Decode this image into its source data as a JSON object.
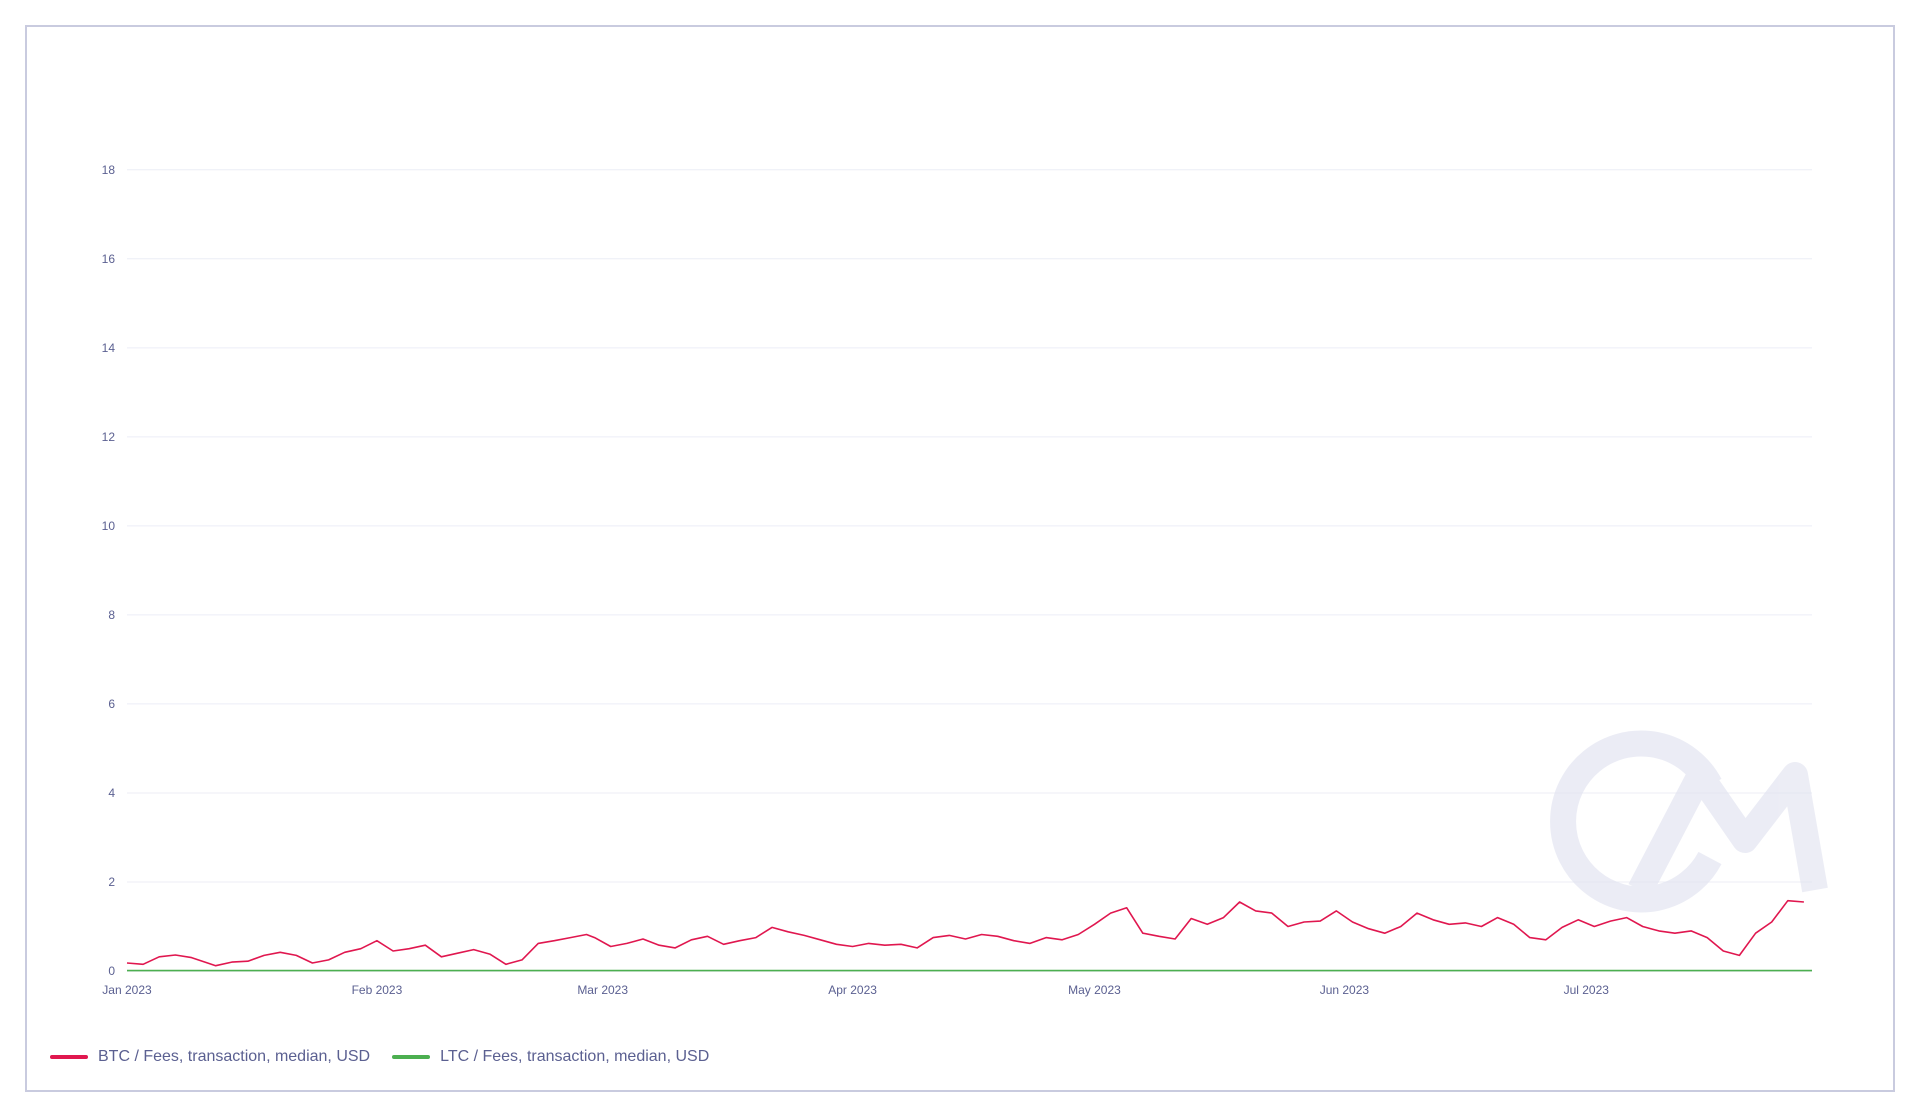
{
  "chart_data": {
    "type": "line",
    "xlim": [
      "2023-01-01",
      "2023-07-29"
    ],
    "ylim": [
      0,
      19.5
    ],
    "grid": true,
    "legend_position": "bottom-left",
    "y_ticks": [
      0,
      2,
      4,
      6,
      8,
      10,
      12,
      14,
      16,
      18
    ],
    "x_ticks": [
      {
        "date": "2023-01-01",
        "label": "Jan 2023"
      },
      {
        "date": "2023-02-01",
        "label": "Feb 2023"
      },
      {
        "date": "2023-03-01",
        "label": "Mar 2023"
      },
      {
        "date": "2023-04-01",
        "label": "Apr 2023"
      },
      {
        "date": "2023-05-01",
        "label": "May 2023"
      },
      {
        "date": "2023-06-01",
        "label": "Jun 2023"
      },
      {
        "date": "2023-07-01",
        "label": "Jul 2023"
      }
    ],
    "series": [
      {
        "name": "BTC / Fees, transaction, median, USD",
        "color": "#e0174f",
        "points": [
          [
            "2023-01-01",
            0.18
          ],
          [
            "2023-01-03",
            0.15
          ],
          [
            "2023-01-05",
            0.32
          ],
          [
            "2023-01-07",
            0.36
          ],
          [
            "2023-01-09",
            0.3
          ],
          [
            "2023-01-11",
            0.18
          ],
          [
            "2023-01-12",
            0.12
          ],
          [
            "2023-01-14",
            0.2
          ],
          [
            "2023-01-16",
            0.22
          ],
          [
            "2023-01-18",
            0.35
          ],
          [
            "2023-01-20",
            0.42
          ],
          [
            "2023-01-22",
            0.35
          ],
          [
            "2023-01-24",
            0.18
          ],
          [
            "2023-01-26",
            0.25
          ],
          [
            "2023-01-28",
            0.42
          ],
          [
            "2023-01-30",
            0.5
          ],
          [
            "2023-02-01",
            0.68
          ],
          [
            "2023-02-03",
            0.45
          ],
          [
            "2023-02-05",
            0.5
          ],
          [
            "2023-02-07",
            0.58
          ],
          [
            "2023-02-09",
            0.32
          ],
          [
            "2023-02-11",
            0.4
          ],
          [
            "2023-02-13",
            0.48
          ],
          [
            "2023-02-15",
            0.38
          ],
          [
            "2023-02-17",
            0.15
          ],
          [
            "2023-02-19",
            0.25
          ],
          [
            "2023-02-21",
            0.62
          ],
          [
            "2023-02-23",
            0.68
          ],
          [
            "2023-02-25",
            0.75
          ],
          [
            "2023-02-27",
            0.82
          ],
          [
            "2023-02-28",
            0.75
          ],
          [
            "2023-03-02",
            0.55
          ],
          [
            "2023-03-04",
            0.62
          ],
          [
            "2023-03-06",
            0.72
          ],
          [
            "2023-03-08",
            0.58
          ],
          [
            "2023-03-10",
            0.52
          ],
          [
            "2023-03-12",
            0.7
          ],
          [
            "2023-03-14",
            0.78
          ],
          [
            "2023-03-16",
            0.6
          ],
          [
            "2023-03-18",
            0.68
          ],
          [
            "2023-03-20",
            0.75
          ],
          [
            "2023-03-22",
            0.98
          ],
          [
            "2023-03-24",
            0.88
          ],
          [
            "2023-03-26",
            0.8
          ],
          [
            "2023-03-28",
            0.7
          ],
          [
            "2023-03-30",
            0.6
          ],
          [
            "2023-04-01",
            0.55
          ],
          [
            "2023-04-03",
            0.62
          ],
          [
            "2023-04-05",
            0.58
          ],
          [
            "2023-04-07",
            0.6
          ],
          [
            "2023-04-09",
            0.52
          ],
          [
            "2023-04-11",
            0.75
          ],
          [
            "2023-04-13",
            0.8
          ],
          [
            "2023-04-15",
            0.72
          ],
          [
            "2023-04-17",
            0.82
          ],
          [
            "2023-04-19",
            0.78
          ],
          [
            "2023-04-21",
            0.68
          ],
          [
            "2023-04-23",
            0.62
          ],
          [
            "2023-04-25",
            0.75
          ],
          [
            "2023-04-27",
            0.7
          ],
          [
            "2023-04-29",
            0.82
          ],
          [
            "2023-05-01",
            1.05
          ],
          [
            "2023-05-03",
            1.3
          ],
          [
            "2023-05-05",
            1.42
          ],
          [
            "2023-05-07",
            0.85
          ],
          [
            "2023-05-09",
            0.78
          ],
          [
            "2023-05-11",
            0.72
          ],
          [
            "2023-05-13",
            1.18
          ],
          [
            "2023-05-15",
            1.05
          ],
          [
            "2023-05-17",
            1.2
          ],
          [
            "2023-05-19",
            1.55
          ],
          [
            "2023-05-21",
            1.35
          ],
          [
            "2023-05-23",
            1.3
          ],
          [
            "2023-05-25",
            1.0
          ],
          [
            "2023-05-27",
            1.1
          ],
          [
            "2023-05-29",
            1.12
          ],
          [
            "2023-05-31",
            1.35
          ],
          [
            "2023-06-02",
            1.1
          ],
          [
            "2023-06-04",
            0.95
          ],
          [
            "2023-06-06",
            0.85
          ],
          [
            "2023-06-08",
            1.0
          ],
          [
            "2023-06-10",
            1.3
          ],
          [
            "2023-06-12",
            1.15
          ],
          [
            "2023-06-14",
            1.05
          ],
          [
            "2023-06-16",
            1.08
          ],
          [
            "2023-06-18",
            1.0
          ],
          [
            "2023-06-20",
            1.2
          ],
          [
            "2023-06-22",
            1.05
          ],
          [
            "2023-06-24",
            0.75
          ],
          [
            "2023-06-26",
            0.7
          ],
          [
            "2023-06-28",
            0.98
          ],
          [
            "2023-06-30",
            1.15
          ],
          [
            "2023-07-02",
            1.0
          ],
          [
            "2023-07-04",
            1.12
          ],
          [
            "2023-07-06",
            1.2
          ],
          [
            "2023-07-08",
            1.0
          ],
          [
            "2023-07-10",
            0.9
          ],
          [
            "2023-07-12",
            0.85
          ],
          [
            "2023-07-14",
            0.9
          ],
          [
            "2023-07-16",
            0.75
          ],
          [
            "2023-07-18",
            0.45
          ],
          [
            "2023-07-20",
            0.35
          ],
          [
            "2023-07-22",
            0.85
          ],
          [
            "2023-07-24",
            1.1
          ],
          [
            "2023-07-26",
            1.58
          ],
          [
            "2023-07-28",
            1.55
          ]
        ]
      },
      {
        "name": "LTC / Fees, transaction, median, USD",
        "color": "#4caf50",
        "points": [
          [
            "2023-01-01",
            0.01
          ],
          [
            "2023-07-29",
            0.01
          ]
        ]
      }
    ]
  },
  "watermark": "CM"
}
